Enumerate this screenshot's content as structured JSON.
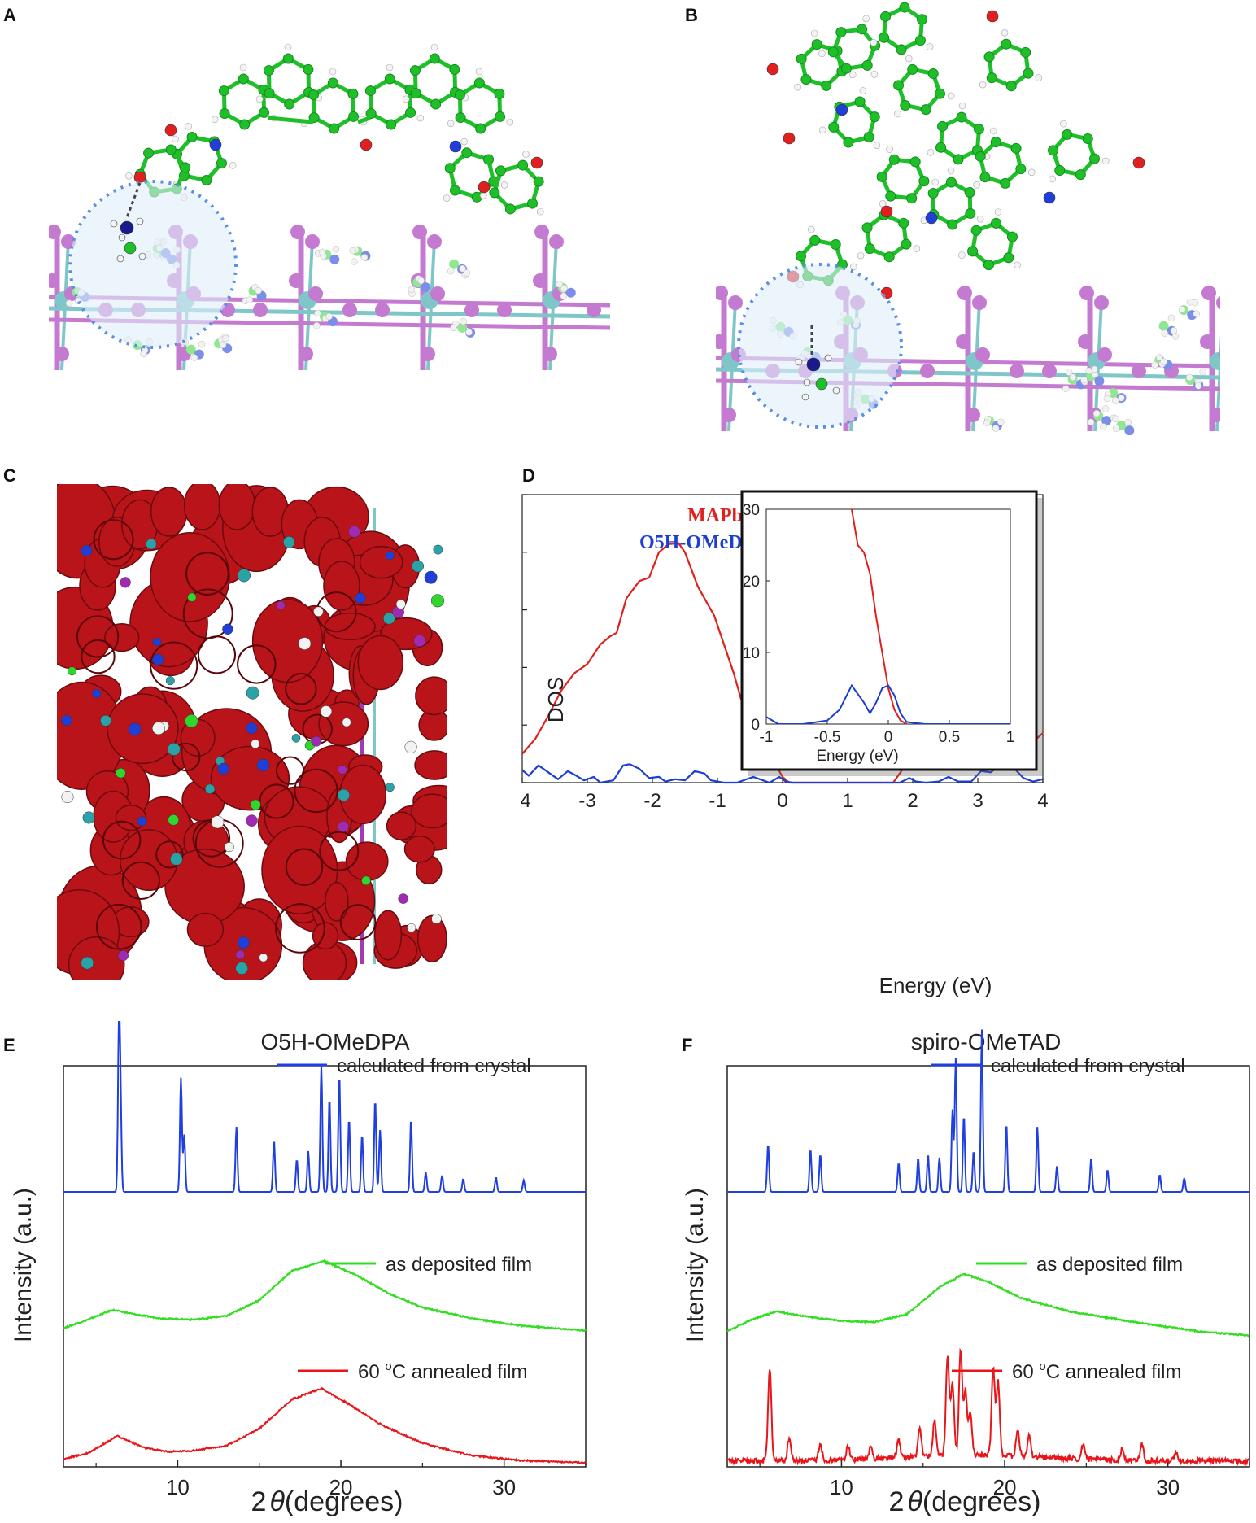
{
  "panels": {
    "A": {
      "letter": "A"
    },
    "B": {
      "letter": "B"
    },
    "C": {
      "letter": "C"
    },
    "D": {
      "letter": "D"
    },
    "E": {
      "letter": "E"
    },
    "F": {
      "letter": "F"
    }
  },
  "colors": {
    "carbon": "#1fbf2a",
    "hydrogen": "#e8e8e8",
    "oxygen": "#e01f1f",
    "nitrogen": "#1f3fd8",
    "iodine": "#c47ad0",
    "lead": "#7fc6c9",
    "density": "#b8141a",
    "mapbi3": "#e0201c",
    "o5h": "#1c3fd0",
    "calc": "#1f3fe0",
    "deposited": "#33dd22",
    "annealed": "#e8161a"
  },
  "chart_data": [
    {
      "id": "D",
      "type": "line",
      "xlabel": "Energy (eV)",
      "ylabel": "DOS",
      "xlim": [
        -4,
        4
      ],
      "ylim": [
        0,
        250
      ],
      "xticks": [
        "-4",
        "-3",
        "-2",
        "-1",
        "0",
        "1",
        "2",
        "3",
        "4"
      ],
      "yticks": [
        "0",
        "50",
        "100",
        "150",
        "200",
        "250"
      ],
      "legend": {
        "mapbi3": "MAPbI",
        "mapbi3_sub": "3",
        "o5h": "O5H-OMeDPA"
      },
      "series": [
        {
          "name": "MAPbI3",
          "color": "#e0201c",
          "x": [
            -4.0,
            -3.8,
            -3.6,
            -3.4,
            -3.2,
            -3.0,
            -2.8,
            -2.65,
            -2.55,
            -2.4,
            -2.2,
            -2.05,
            -1.9,
            -1.75,
            -1.6,
            -1.5,
            -1.4,
            -1.3,
            -1.2,
            -1.05,
            -0.9,
            -0.75,
            -0.6,
            -0.45,
            -0.3,
            -0.2,
            -0.1,
            0.0,
            0.1,
            0.2,
            0.5,
            1.0,
            1.5,
            1.7,
            1.85,
            2.0,
            2.15,
            2.3,
            2.45,
            2.55,
            2.7,
            2.8,
            2.95,
            3.1,
            3.25,
            3.4,
            3.6,
            3.8,
            4.0
          ],
          "y": [
            25,
            38,
            58,
            80,
            95,
            103,
            120,
            127,
            130,
            160,
            175,
            178,
            200,
            207,
            208,
            200,
            185,
            170,
            160,
            145,
            120,
            95,
            65,
            35,
            22,
            20,
            15,
            5,
            0,
            0,
            0,
            0,
            0,
            0,
            12,
            25,
            38,
            52,
            59,
            58,
            57,
            52,
            53,
            42,
            23,
            25,
            30,
            33,
            43
          ]
        },
        {
          "name": "O5H-OMeDPA",
          "color": "#1c3fd0",
          "x": [
            -4.0,
            -3.9,
            -3.75,
            -3.6,
            -3.45,
            -3.3,
            -3.2,
            -3.05,
            -2.9,
            -2.8,
            -2.6,
            -2.45,
            -2.35,
            -2.2,
            -2.05,
            -1.9,
            -1.8,
            -1.65,
            -1.5,
            -1.35,
            -1.2,
            -1.1,
            -0.9,
            -0.7,
            -0.45,
            -0.3,
            -0.2,
            -0.05,
            0.05,
            0.15,
            0.5,
            1.0,
            1.5,
            1.8,
            1.95,
            2.05,
            2.2,
            2.4,
            2.55,
            2.7,
            2.9,
            3.05,
            3.2,
            3.4,
            3.55,
            3.7,
            3.85,
            4.0
          ],
          "y": [
            11,
            6,
            15,
            9,
            3,
            10,
            7,
            2,
            5,
            0,
            2,
            15,
            16,
            12,
            4,
            5,
            1,
            3,
            2,
            10,
            8,
            2,
            0,
            0,
            5,
            2,
            0,
            5,
            1,
            0,
            0,
            0,
            0,
            0,
            4,
            1,
            0,
            1,
            5,
            1,
            1,
            10,
            9,
            18,
            13,
            4,
            1,
            3
          ]
        }
      ],
      "inset": {
        "xlabel": "Energy (eV)",
        "xlim": [
          -1,
          1
        ],
        "ylim": [
          0,
          30
        ],
        "xticks": [
          "-1",
          "-0.5",
          "0",
          "0.5",
          "1"
        ],
        "yticks": [
          "0",
          "10",
          "20",
          "30"
        ],
        "series": [
          {
            "name": "MAPbI3",
            "color": "#e0201c",
            "x": [
              -0.3,
              -0.25,
              -0.2,
              -0.15,
              -0.1,
              -0.05,
              0.0,
              0.05,
              0.1,
              0.15
            ],
            "y": [
              30,
              25,
              24,
              21,
              15,
              10,
              5,
              2,
              0.5,
              0
            ]
          },
          {
            "name": "O5H-OMeDPA",
            "color": "#1c3fd0",
            "x": [
              -1.0,
              -0.9,
              -0.7,
              -0.5,
              -0.4,
              -0.3,
              -0.2,
              -0.15,
              -0.1,
              -0.05,
              0.0,
              0.05,
              0.1,
              0.15,
              0.3,
              0.6,
              1.0
            ],
            "y": [
              1,
              0,
              0,
              0.5,
              2,
              5.4,
              3,
              1.5,
              3,
              5,
              5.4,
              4,
              1.5,
              0.3,
              0,
              0,
              0
            ]
          }
        ]
      }
    },
    {
      "id": "E",
      "type": "line",
      "title": "O5H-OMeDPA",
      "xlabel": "2θ (degrees)",
      "xlabel_theta": "θ",
      "xlabel_rest": "(degrees)",
      "ylabel": "Intensity (a.u.)",
      "xlim": [
        3,
        35
      ],
      "xticks": [
        "10",
        "20",
        "30"
      ],
      "legend": [
        "calculated from crystal",
        "as deposited film",
        "60 °C annealed film"
      ],
      "legend_sup": "o",
      "legend_annealed_a": "60 ",
      "legend_annealed_b": "C annealed film",
      "peaks_calc": [
        [
          6.4,
          1.0
        ],
        [
          6.5,
          0.5
        ],
        [
          10.2,
          0.7
        ],
        [
          10.4,
          0.35
        ],
        [
          13.6,
          0.4
        ],
        [
          15.9,
          0.32
        ],
        [
          17.3,
          0.2
        ],
        [
          18.0,
          0.25
        ],
        [
          18.8,
          0.78
        ],
        [
          19.3,
          0.58
        ],
        [
          19.9,
          0.72
        ],
        [
          20.5,
          0.45
        ],
        [
          21.3,
          0.35
        ],
        [
          22.1,
          0.57
        ],
        [
          22.4,
          0.38
        ],
        [
          24.3,
          0.45
        ],
        [
          25.2,
          0.12
        ],
        [
          26.2,
          0.1
        ],
        [
          27.5,
          0.08
        ],
        [
          29.5,
          0.09
        ],
        [
          31.2,
          0.07
        ]
      ],
      "deposited": {
        "x": [
          3,
          4.5,
          6,
          7.5,
          9,
          11,
          13,
          15,
          17,
          19,
          21,
          23,
          25,
          28,
          31,
          35
        ],
        "y": [
          0.05,
          0.12,
          0.2,
          0.16,
          0.13,
          0.12,
          0.15,
          0.28,
          0.52,
          0.6,
          0.48,
          0.33,
          0.22,
          0.13,
          0.07,
          0.03
        ]
      },
      "annealed": {
        "x": [
          3,
          4.5,
          6.3,
          8,
          9.5,
          11,
          13,
          15,
          17,
          18.8,
          20.5,
          22.5,
          25,
          28,
          31,
          35
        ],
        "y": [
          0.05,
          0.1,
          0.24,
          0.14,
          0.11,
          0.12,
          0.16,
          0.3,
          0.54,
          0.63,
          0.5,
          0.33,
          0.18,
          0.08,
          0.04,
          0.02
        ]
      }
    },
    {
      "id": "F",
      "type": "line",
      "title": "spiro-OMeTAD",
      "xlabel": "2θ (degrees)",
      "xlabel_theta": "θ",
      "xlabel_rest": "(degrees)",
      "ylabel": "Intensity (a.u.)",
      "xlim": [
        3,
        35
      ],
      "xticks": [
        "10",
        "20",
        "30"
      ],
      "legend": [
        "calculated from crystal",
        "as deposited film",
        "60 °C annealed film"
      ],
      "legend_sup": "o",
      "legend_annealed_a": "60 ",
      "legend_annealed_b": "C annealed film",
      "peaks_calc": [
        [
          5.5,
          0.28
        ],
        [
          8.1,
          0.25
        ],
        [
          8.7,
          0.22
        ],
        [
          13.5,
          0.17
        ],
        [
          14.7,
          0.2
        ],
        [
          15.3,
          0.22
        ],
        [
          16.0,
          0.2
        ],
        [
          16.8,
          0.48
        ],
        [
          17.0,
          0.78
        ],
        [
          17.5,
          0.45
        ],
        [
          18.1,
          0.24
        ],
        [
          18.6,
          0.95
        ],
        [
          20.1,
          0.4
        ],
        [
          22.0,
          0.38
        ],
        [
          23.2,
          0.15
        ],
        [
          25.3,
          0.2
        ],
        [
          26.3,
          0.13
        ],
        [
          29.5,
          0.1
        ],
        [
          31.0,
          0.08
        ]
      ],
      "deposited": {
        "x": [
          3,
          4.5,
          6,
          8,
          10,
          12,
          14,
          16,
          17.5,
          19,
          21,
          24,
          28,
          32,
          35
        ],
        "y": [
          0.05,
          0.14,
          0.2,
          0.16,
          0.13,
          0.12,
          0.18,
          0.38,
          0.48,
          0.42,
          0.3,
          0.2,
          0.12,
          0.05,
          0.02
        ]
      },
      "peaks_annealed": [
        [
          5.6,
          0.65
        ],
        [
          6.8,
          0.16
        ],
        [
          8.7,
          0.12
        ],
        [
          10.4,
          0.1
        ],
        [
          11.8,
          0.08
        ],
        [
          13.5,
          0.12
        ],
        [
          14.8,
          0.2
        ],
        [
          15.7,
          0.25
        ],
        [
          16.5,
          0.7
        ],
        [
          16.8,
          0.5
        ],
        [
          17.3,
          0.75
        ],
        [
          17.6,
          0.45
        ],
        [
          17.9,
          0.3
        ],
        [
          19.3,
          0.62
        ],
        [
          19.6,
          0.52
        ],
        [
          20.8,
          0.18
        ],
        [
          21.5,
          0.15
        ],
        [
          24.8,
          0.1
        ],
        [
          27.2,
          0.08
        ],
        [
          28.4,
          0.12
        ],
        [
          30.5,
          0.06
        ]
      ]
    }
  ]
}
